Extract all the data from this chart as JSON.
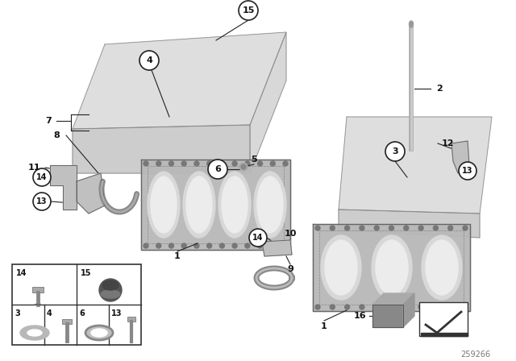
{
  "bg_color": "#ffffff",
  "diagram_id": "259266",
  "fig_width": 6.4,
  "fig_height": 4.48,
  "dpi": 100,
  "line_color": "#222222",
  "circle_bg": "#ffffff",
  "circle_edge": "#222222",
  "text_color": "#111111",
  "part_gray": "#c8c8c8",
  "part_dark": "#999999",
  "gasket_gray": "#aaaaaa",
  "gasket_hole_light": "#e8e8e8",
  "grid_parts": {
    "top_left_label": "14",
    "top_right_label": "15",
    "bot_labels": [
      "3",
      "4",
      "6",
      "13"
    ]
  }
}
